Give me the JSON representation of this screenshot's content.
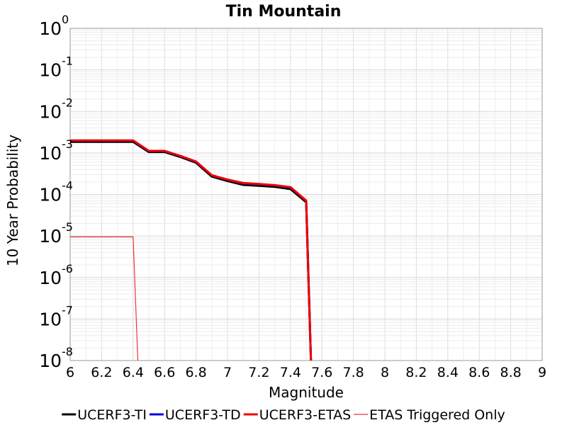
{
  "chart_data": {
    "type": "line",
    "title": "Tin Mountain",
    "xlabel": "Magnitude",
    "ylabel": "10 Year Probability",
    "xlim": [
      6,
      9
    ],
    "ylim": [
      1e-08,
      1
    ],
    "y_scale": "log",
    "grid": true,
    "legend_position": "bottom",
    "x_ticks": [
      "6",
      "6.2",
      "6.4",
      "6.6",
      "6.8",
      "7",
      "7.2",
      "7.4",
      "7.6",
      "7.8",
      "8",
      "8.2",
      "8.4",
      "8.6",
      "8.8",
      "9"
    ],
    "y_ticks": [
      {
        "base": "10",
        "exp": "0"
      },
      {
        "base": "10",
        "exp": "-1"
      },
      {
        "base": "10",
        "exp": "-2"
      },
      {
        "base": "10",
        "exp": "-3"
      },
      {
        "base": "10",
        "exp": "-4"
      },
      {
        "base": "10",
        "exp": "-5"
      },
      {
        "base": "10",
        "exp": "-6"
      },
      {
        "base": "10",
        "exp": "-7"
      },
      {
        "base": "10",
        "exp": "-8"
      }
    ],
    "series": [
      {
        "name": "UCERF3-TI",
        "color": "#000000",
        "width": 3,
        "x": [
          6.0,
          6.1,
          6.2,
          6.3,
          6.4,
          6.5,
          6.6,
          6.7,
          6.8,
          6.9,
          7.0,
          7.1,
          7.2,
          7.3,
          7.4,
          7.5,
          7.53
        ],
        "y": [
          0.00185,
          0.00185,
          0.00185,
          0.00185,
          0.00185,
          0.00105,
          0.00105,
          0.0008,
          0.00058,
          0.00027,
          0.00021,
          0.00017,
          0.000162,
          0.000152,
          0.000135,
          6.5e-05,
          1e-08
        ]
      },
      {
        "name": "UCERF3-TD",
        "color": "#0000dd",
        "width": 3,
        "x": [
          6.0,
          6.1,
          6.2,
          6.3,
          6.4,
          6.5,
          6.6,
          6.7,
          6.8,
          6.9,
          7.0,
          7.1,
          7.2,
          7.3,
          7.4,
          7.5,
          7.53
        ],
        "y": [
          0.00198,
          0.00198,
          0.00198,
          0.00198,
          0.00198,
          0.00111,
          0.00111,
          0.00084,
          0.00061,
          0.00029,
          0.000225,
          0.000185,
          0.000176,
          0.000165,
          0.000148,
          7e-05,
          1e-08
        ]
      },
      {
        "name": "UCERF3-ETAS",
        "color": "#ee0000",
        "width": 3,
        "x": [
          6.0,
          6.1,
          6.2,
          6.3,
          6.4,
          6.5,
          6.6,
          6.7,
          6.8,
          6.9,
          7.0,
          7.1,
          7.2,
          7.3,
          7.4,
          7.5,
          7.53
        ],
        "y": [
          0.002,
          0.002,
          0.002,
          0.002,
          0.002,
          0.00112,
          0.00112,
          0.00085,
          0.00062,
          0.00029,
          0.000228,
          0.000188,
          0.000178,
          0.000167,
          0.00015,
          7.1e-05,
          1e-08
        ]
      },
      {
        "name": "ETAS Triggered Only",
        "color": "#ee3333",
        "width": 1.2,
        "x": [
          6.0,
          6.1,
          6.2,
          6.3,
          6.4,
          6.43
        ],
        "y": [
          9.5e-06,
          9.5e-06,
          9.5e-06,
          9.5e-06,
          9.5e-06,
          1e-08
        ]
      }
    ]
  }
}
